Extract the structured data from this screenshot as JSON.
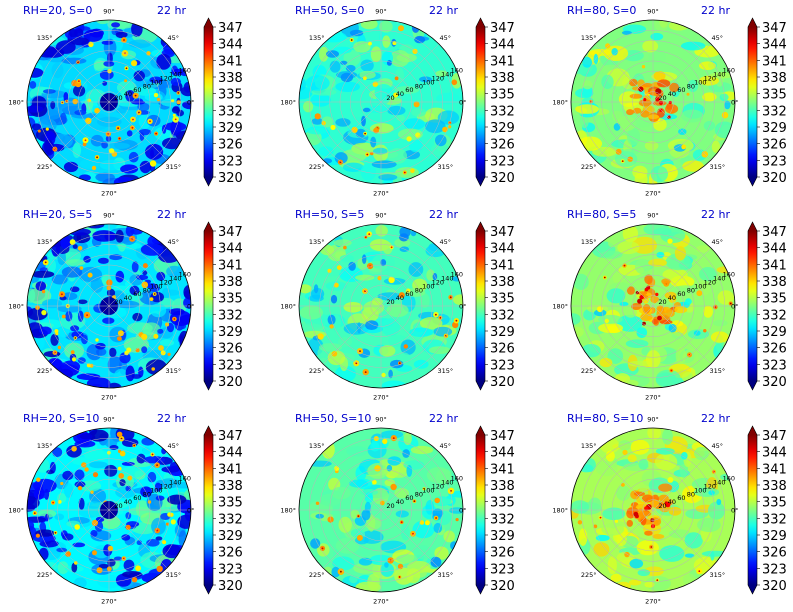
{
  "figure": {
    "colorbar": {
      "ticks": [
        "347",
        "344",
        "341",
        "338",
        "335",
        "332",
        "329",
        "326",
        "323",
        "320"
      ],
      "min": 320,
      "max": 347,
      "colormap": "jet",
      "extend": "both"
    },
    "angle_labels": [
      "90°",
      "45°",
      "0°",
      "315°",
      "270°",
      "225°",
      "180°",
      "135°"
    ],
    "radial_labels": [
      "20",
      "40",
      "60",
      "80",
      "100",
      "120",
      "140",
      "160"
    ]
  },
  "chart_data": [
    {
      "type": "heatmap",
      "projection": "polar",
      "title": "RH=20, S=0",
      "time_label": "22 hr",
      "rlim": [
        0,
        160
      ],
      "clim": [
        320,
        347
      ],
      "grid": true,
      "mean_level": 0.34
    },
    {
      "type": "heatmap",
      "projection": "polar",
      "title": "RH=50, S=0",
      "time_label": "22 hr",
      "rlim": [
        0,
        160
      ],
      "clim": [
        320,
        347
      ],
      "grid": true,
      "mean_level": 0.42
    },
    {
      "type": "heatmap",
      "projection": "polar",
      "title": "RH=80, S=0",
      "time_label": "22 hr",
      "rlim": [
        0,
        160
      ],
      "clim": [
        320,
        347
      ],
      "grid": true,
      "mean_level": 0.5
    },
    {
      "type": "heatmap",
      "projection": "polar",
      "title": "RH=20, S=5",
      "time_label": "22 hr",
      "rlim": [
        0,
        160
      ],
      "clim": [
        320,
        347
      ],
      "grid": true,
      "mean_level": 0.35
    },
    {
      "type": "heatmap",
      "projection": "polar",
      "title": "RH=50, S=5",
      "time_label": "22 hr",
      "rlim": [
        0,
        160
      ],
      "clim": [
        320,
        347
      ],
      "grid": true,
      "mean_level": 0.44
    },
    {
      "type": "heatmap",
      "projection": "polar",
      "title": "RH=80, S=5",
      "time_label": "22 hr",
      "rlim": [
        0,
        160
      ],
      "clim": [
        320,
        347
      ],
      "grid": true,
      "mean_level": 0.52
    },
    {
      "type": "heatmap",
      "projection": "polar",
      "title": "RH=20, S=10",
      "time_label": "22 hr",
      "rlim": [
        0,
        160
      ],
      "clim": [
        320,
        347
      ],
      "grid": true,
      "mean_level": 0.37
    },
    {
      "type": "heatmap",
      "projection": "polar",
      "title": "RH=50, S=10",
      "time_label": "22 hr",
      "rlim": [
        0,
        160
      ],
      "clim": [
        320,
        347
      ],
      "grid": true,
      "mean_level": 0.46
    },
    {
      "type": "heatmap",
      "projection": "polar",
      "title": "RH=80, S=10",
      "time_label": "22 hr",
      "rlim": [
        0,
        160
      ],
      "clim": [
        320,
        347
      ],
      "grid": true,
      "mean_level": 0.54
    }
  ]
}
